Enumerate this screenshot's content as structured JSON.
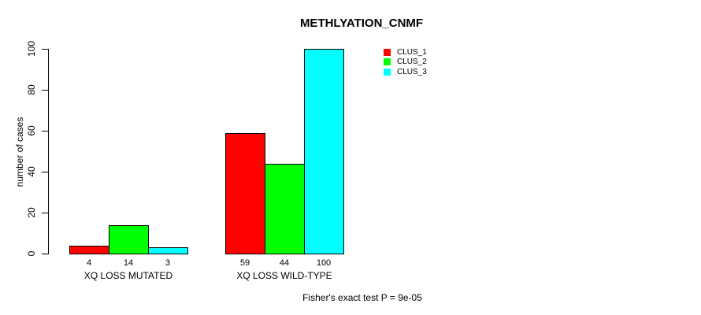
{
  "chart_data": {
    "type": "bar",
    "grouped": true,
    "title": "METHLYATION_CNMF",
    "ylabel": "number of cases",
    "categories": [
      "XQ LOSS MUTATED",
      "XQ LOSS WILD-TYPE"
    ],
    "series": [
      {
        "name": "CLUS_1",
        "color": "#ff0000",
        "values": [
          4,
          59
        ]
      },
      {
        "name": "CLUS_2",
        "color": "#00ff00",
        "values": [
          14,
          44
        ]
      },
      {
        "name": "CLUS_3",
        "color": "#00ffff",
        "values": [
          3,
          100
        ]
      }
    ],
    "ylim": [
      0,
      100
    ],
    "yticks": [
      0,
      20,
      40,
      60,
      80,
      100
    ],
    "bar_value_labels_shown": true,
    "grid": false,
    "legend_position": "top-right",
    "annotation": "Fisher's exact test P = 9e-05"
  },
  "colors": {
    "background": "#ffffff",
    "axis": "#000000",
    "bar_border": "#000000",
    "text": "#000000"
  }
}
